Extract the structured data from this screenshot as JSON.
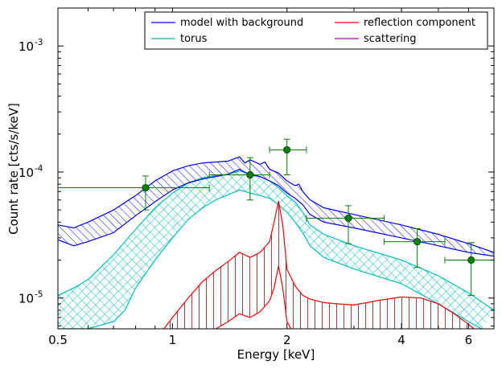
{
  "chart_data": {
    "type": "line",
    "xlabel": "Energy [keV]",
    "ylabel": "Count rate [cts/s/keV]",
    "xscale": "log",
    "yscale": "log",
    "xlim": [
      0.5,
      7.0
    ],
    "ylim": [
      5.7e-06,
      0.002
    ],
    "x_ticks": [
      {
        "value": 0.5,
        "label": "0.5"
      },
      {
        "value": 1,
        "label": "1"
      },
      {
        "value": 2,
        "label": "2"
      },
      {
        "value": 4,
        "label": "4"
      },
      {
        "value": 6,
        "label": "6"
      }
    ],
    "y_ticks": [
      {
        "value": 1e-05,
        "base": "10",
        "exp": "-5"
      },
      {
        "value": 0.0001,
        "base": "10",
        "exp": "-4"
      },
      {
        "value": 0.001,
        "base": "10",
        "exp": "-3"
      }
    ],
    "legend": {
      "placement": "top-right",
      "columns": 2,
      "entries": [
        {
          "label": "model with background",
          "color": "#0000ff"
        },
        {
          "label": "reflection component",
          "color": "#ff0000"
        },
        {
          "label": "torus",
          "color": "#00bfbf"
        },
        {
          "label": "scattering",
          "color": "#bf00bf"
        }
      ]
    },
    "series": [
      {
        "name": "model with background",
        "color": "#0000ff",
        "hatch": "diagonal",
        "upper": [
          [
            0.5,
            3.8e-05
          ],
          [
            0.55,
            3.6e-05
          ],
          [
            0.6,
            4e-05
          ],
          [
            0.7,
            5e-05
          ],
          [
            0.8,
            6.5e-05
          ],
          [
            0.9,
            8.5e-05
          ],
          [
            1.0,
            0.000102
          ],
          [
            1.1,
            0.000112
          ],
          [
            1.2,
            0.000118
          ],
          [
            1.3,
            0.00012
          ],
          [
            1.4,
            0.000122
          ],
          [
            1.5,
            0.000132
          ],
          [
            1.55,
            0.000118
          ],
          [
            1.6,
            0.000125
          ],
          [
            1.7,
            0.000115
          ],
          [
            1.75,
            0.00012
          ],
          [
            1.8,
            0.000105
          ],
          [
            1.9,
            9.8e-05
          ],
          [
            2.0,
            8.5e-05
          ],
          [
            2.1,
            7.8e-05
          ],
          [
            2.15,
            8e-05
          ],
          [
            2.2,
            7e-05
          ],
          [
            2.3,
            6e-05
          ],
          [
            2.5,
            5.2e-05
          ],
          [
            3.0,
            4.6e-05
          ],
          [
            4.0,
            3.8e-05
          ],
          [
            5.0,
            3.2e-05
          ],
          [
            6.0,
            2.7e-05
          ],
          [
            7.0,
            2.3e-05
          ]
        ],
        "lower": [
          [
            0.5,
            2.9e-05
          ],
          [
            0.55,
            2.6e-05
          ],
          [
            0.6,
            2.8e-05
          ],
          [
            0.7,
            3.3e-05
          ],
          [
            0.8,
            4.5e-05
          ],
          [
            0.9,
            5.8e-05
          ],
          [
            1.0,
            7.2e-05
          ],
          [
            1.1,
            8.2e-05
          ],
          [
            1.2,
            8.8e-05
          ],
          [
            1.3,
            9.2e-05
          ],
          [
            1.4,
            9.6e-05
          ],
          [
            1.5,
            0.000105
          ],
          [
            1.6,
            9.5e-05
          ],
          [
            1.7,
            9.2e-05
          ],
          [
            1.8,
            8.5e-05
          ],
          [
            1.9,
            7.8e-05
          ],
          [
            2.0,
            6.8e-05
          ],
          [
            2.1,
            6.2e-05
          ],
          [
            2.2,
            5.5e-05
          ],
          [
            2.3,
            4.6e-05
          ],
          [
            2.5,
            4e-05
          ],
          [
            3.0,
            3.6e-05
          ],
          [
            4.0,
            3e-05
          ],
          [
            5.0,
            2.6e-05
          ],
          [
            6.0,
            2.3e-05
          ],
          [
            7.0,
            2.15e-05
          ]
        ]
      },
      {
        "name": "torus",
        "color": "#00bfbf",
        "hatch": "cross",
        "upper": [
          [
            0.5,
            1.05e-05
          ],
          [
            0.55,
            1.2e-05
          ],
          [
            0.6,
            1.4e-05
          ],
          [
            0.7,
            2.2e-05
          ],
          [
            0.8,
            3.5e-05
          ],
          [
            0.9,
            5.2e-05
          ],
          [
            1.0,
            6.8e-05
          ],
          [
            1.1,
            8.2e-05
          ],
          [
            1.2,
            9e-05
          ],
          [
            1.3,
            9.4e-05
          ],
          [
            1.4,
            9.6e-05
          ],
          [
            1.5,
            0.000102
          ],
          [
            1.6,
            9.6e-05
          ],
          [
            1.7,
            9.2e-05
          ],
          [
            1.8,
            8.5e-05
          ],
          [
            1.9,
            7.5e-05
          ],
          [
            2.0,
            6.5e-05
          ],
          [
            2.1,
            5.8e-05
          ],
          [
            2.2,
            4.8e-05
          ],
          [
            2.3,
            3.8e-05
          ],
          [
            2.5,
            3.2e-05
          ],
          [
            3.0,
            2.6e-05
          ],
          [
            4.0,
            2e-05
          ],
          [
            5.0,
            1.5e-05
          ],
          [
            6.0,
            1.1e-05
          ],
          [
            7.0,
            8e-06
          ]
        ],
        "lower": [
          [
            0.5,
            5.7e-06
          ],
          [
            0.6,
            5.7e-06
          ],
          [
            0.7,
            6.5e-06
          ],
          [
            0.75,
            8e-06
          ],
          [
            0.8,
            1.2e-05
          ],
          [
            0.9,
            2e-05
          ],
          [
            1.0,
            3e-05
          ],
          [
            1.1,
            4.2e-05
          ],
          [
            1.2,
            5.2e-05
          ],
          [
            1.3,
            6e-05
          ],
          [
            1.4,
            6.6e-05
          ],
          [
            1.5,
            7.2e-05
          ],
          [
            1.6,
            6.8e-05
          ],
          [
            1.7,
            6.5e-05
          ],
          [
            1.8,
            6.2e-05
          ],
          [
            1.9,
            5.5e-05
          ],
          [
            2.0,
            4.8e-05
          ],
          [
            2.1,
            4e-05
          ],
          [
            2.2,
            3.3e-05
          ],
          [
            2.3,
            2.6e-05
          ],
          [
            2.5,
            2.1e-05
          ],
          [
            3.0,
            1.7e-05
          ],
          [
            4.0,
            1.3e-05
          ],
          [
            5.0,
            9e-06
          ],
          [
            6.0,
            6.5e-06
          ],
          [
            6.5,
            5.7e-06
          ]
        ]
      },
      {
        "name": "reflection component",
        "color": "#ff0000",
        "hatch": "vertical",
        "upper": [
          [
            0.95,
            5.7e-06
          ],
          [
            1.0,
            7e-06
          ],
          [
            1.1,
            1e-05
          ],
          [
            1.2,
            1.35e-05
          ],
          [
            1.3,
            1.65e-05
          ],
          [
            1.4,
            1.95e-05
          ],
          [
            1.5,
            2.3e-05
          ],
          [
            1.6,
            2.1e-05
          ],
          [
            1.7,
            2.3e-05
          ],
          [
            1.8,
            2.8e-05
          ],
          [
            1.85,
            4e-05
          ],
          [
            1.9,
            5.9e-05
          ],
          [
            1.95,
            3.8e-05
          ],
          [
            2.0,
            1.7e-05
          ],
          [
            2.1,
            1.25e-05
          ],
          [
            2.2,
            1.05e-05
          ],
          [
            2.3,
            9.8e-06
          ],
          [
            2.5,
            9.2e-06
          ],
          [
            2.7,
            9e-06
          ],
          [
            3.0,
            8.8e-06
          ],
          [
            3.5,
            9.6e-06
          ],
          [
            4.0,
            1.02e-05
          ],
          [
            4.5,
            1e-05
          ],
          [
            5.0,
            9e-06
          ],
          [
            5.5,
            7.5e-06
          ],
          [
            6.0,
            6.2e-06
          ],
          [
            6.2,
            5.7e-06
          ]
        ],
        "lower": [
          [
            1.3,
            5.7e-06
          ],
          [
            1.4,
            6.5e-06
          ],
          [
            1.5,
            7.5e-06
          ],
          [
            1.6,
            7e-06
          ],
          [
            1.7,
            7.8e-06
          ],
          [
            1.8,
            9.5e-06
          ],
          [
            1.85,
            1.2e-05
          ],
          [
            1.9,
            1.8e-05
          ],
          [
            1.95,
            1.2e-05
          ],
          [
            2.0,
            6.5e-06
          ],
          [
            2.05,
            5.7e-06
          ]
        ]
      }
    ],
    "data_points": [
      {
        "x": 0.85,
        "y": 7.5e-05,
        "xerr": [
          0.5,
          1.25
        ],
        "yerr": [
          5e-05,
          9.3e-05
        ]
      },
      {
        "x": 1.6,
        "y": 9.5e-05,
        "xerr": [
          1.25,
          1.8
        ],
        "yerr": [
          6e-05,
          0.00013
        ]
      },
      {
        "x": 2.0,
        "y": 0.00015,
        "xerr": [
          1.8,
          2.25
        ],
        "yerr": [
          9.5e-05,
          0.000182
        ]
      },
      {
        "x": 2.9,
        "y": 4.3e-05,
        "xerr": [
          2.25,
          3.6
        ],
        "yerr": [
          2.7e-05,
          5.4e-05
        ]
      },
      {
        "x": 4.4,
        "y": 2.8e-05,
        "xerr": [
          3.6,
          5.2
        ],
        "yerr": [
          1.75e-05,
          3.55e-05
        ]
      },
      {
        "x": 6.1,
        "y": 2e-05,
        "xerr": [
          5.2,
          7.0
        ],
        "yerr": [
          1.05e-05,
          2.75e-05
        ]
      }
    ],
    "data_point_color": "#008000",
    "grid": false
  }
}
